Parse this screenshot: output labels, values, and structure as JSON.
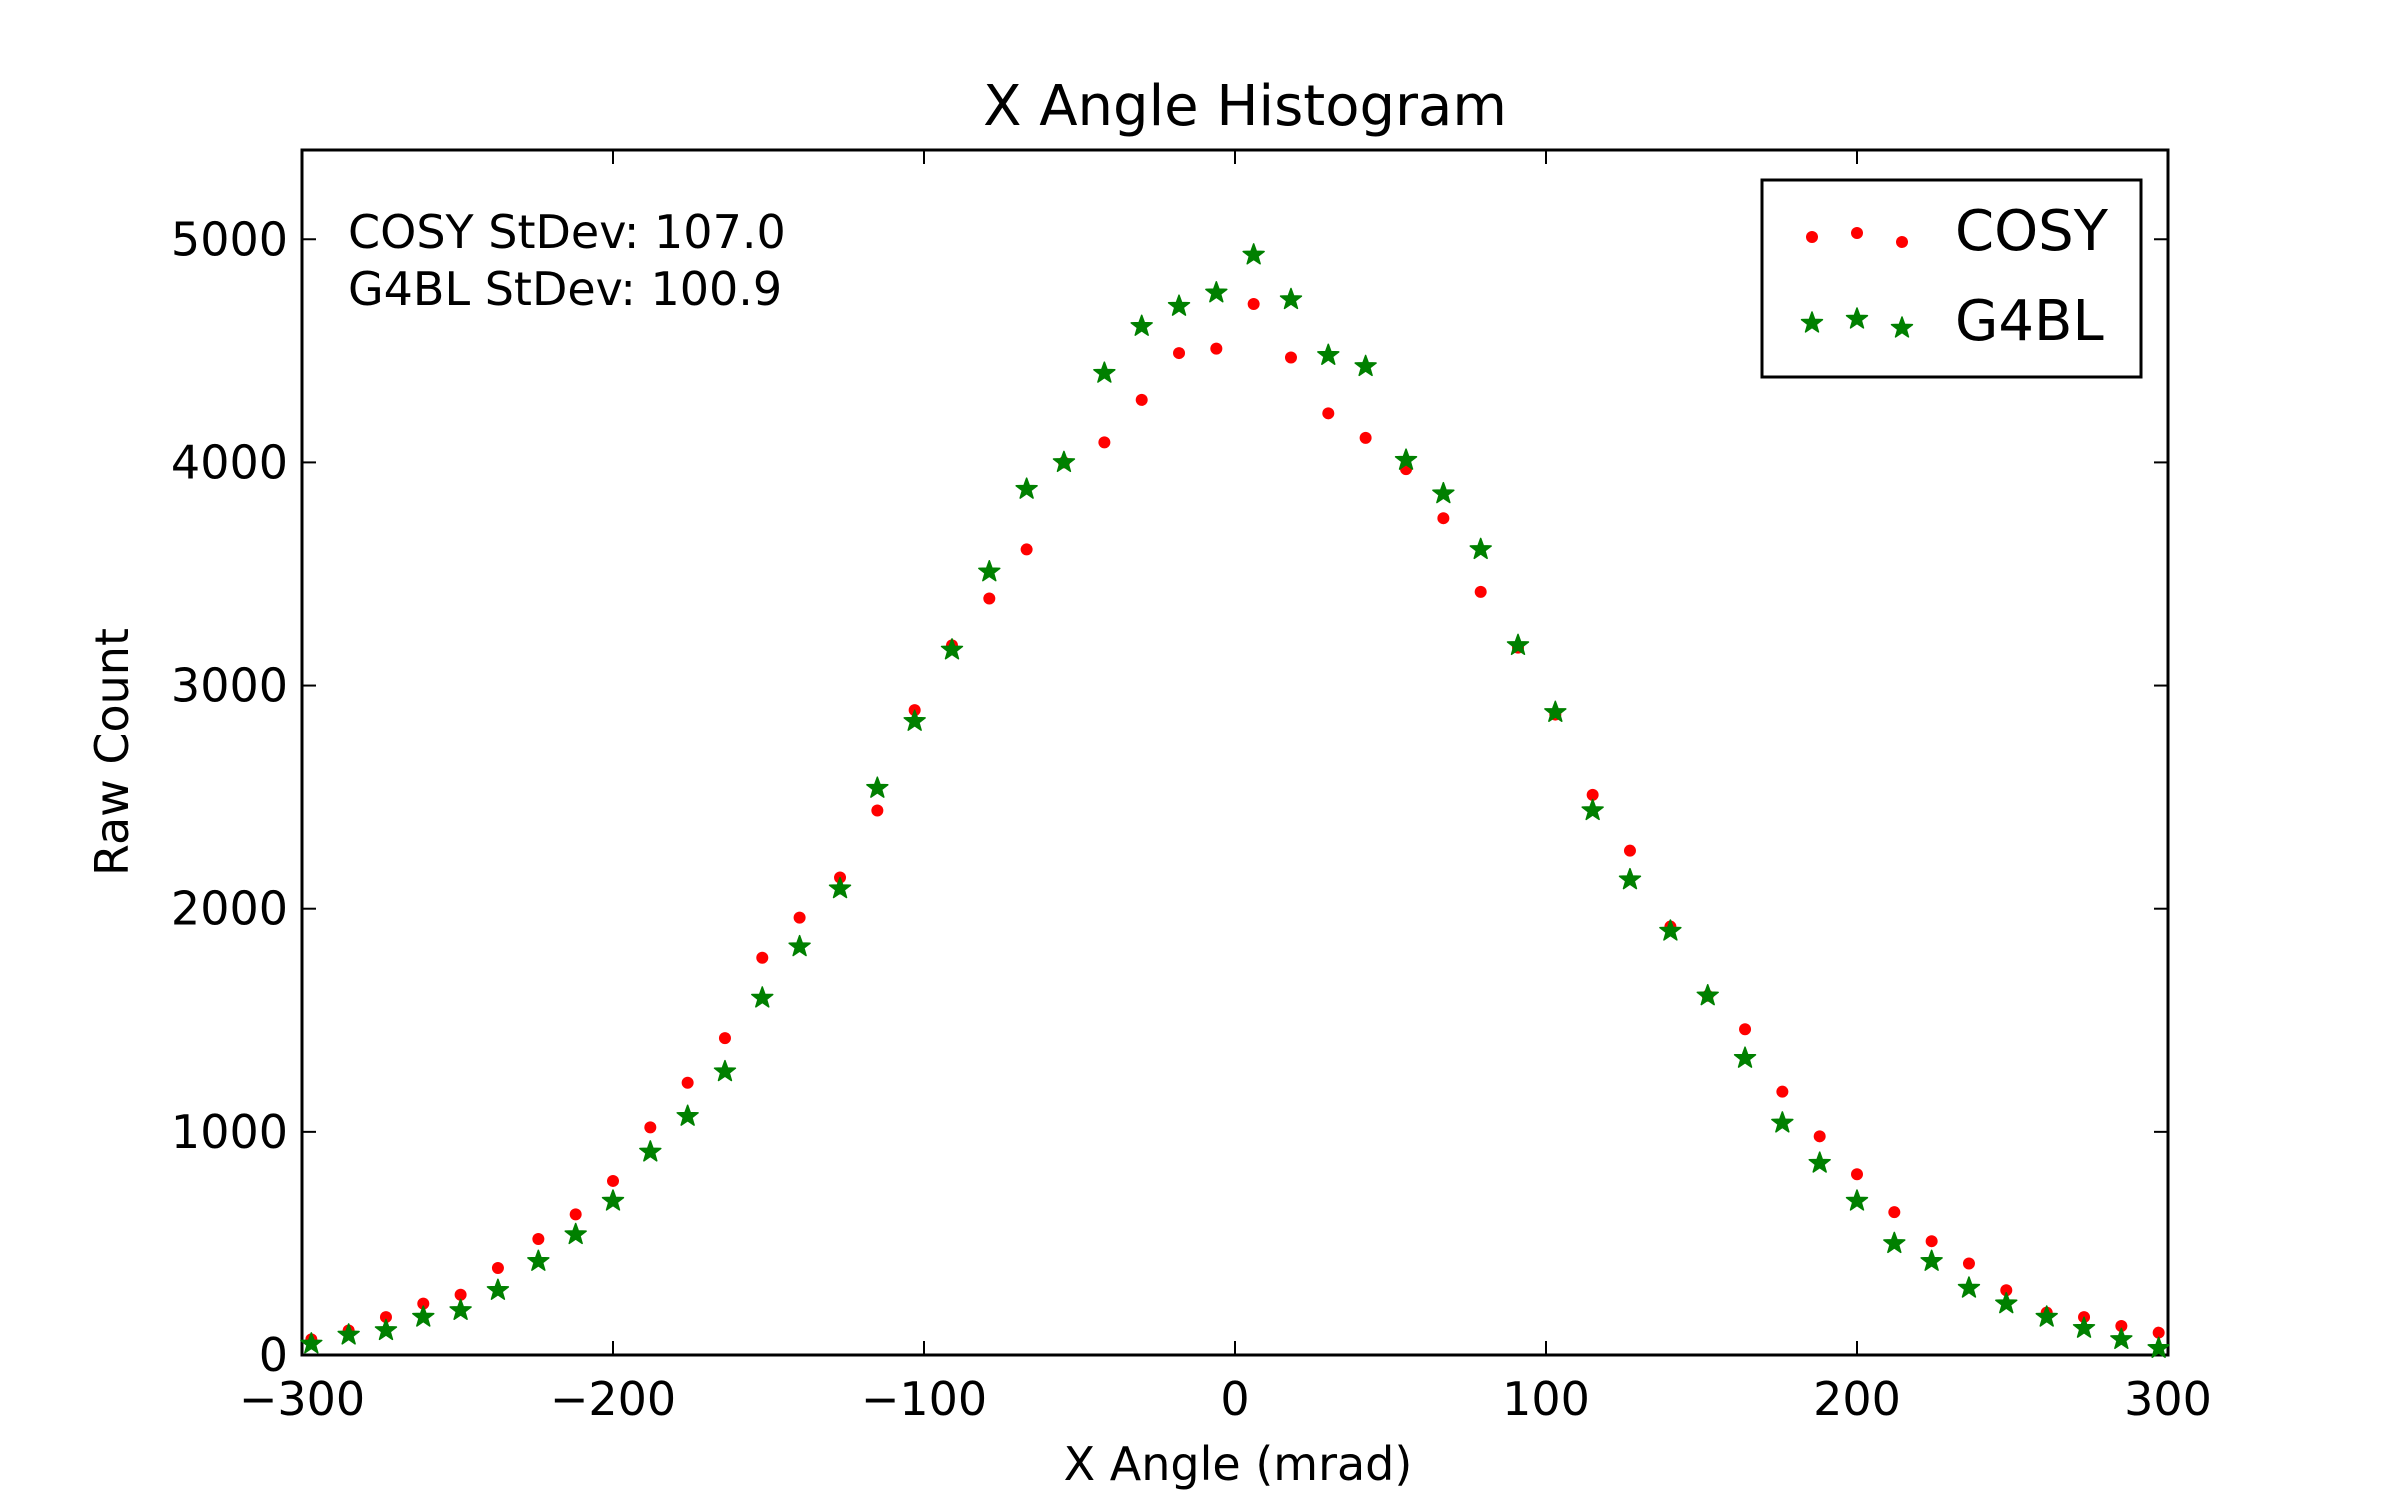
{
  "chart_data": {
    "type": "scatter",
    "title": "X Angle Histogram",
    "xlabel": "X Angle (mrad)",
    "ylabel": "Raw Count",
    "xlim": [
      -300,
      300
    ],
    "ylim": [
      0,
      5400
    ],
    "xticks": [
      -300,
      -200,
      -100,
      0,
      100,
      200,
      300
    ],
    "xtick_labels": [
      "−300",
      "−200",
      "−100",
      "0",
      "100",
      "200",
      "300"
    ],
    "yticks": [
      0,
      1000,
      2000,
      3000,
      4000,
      5000
    ],
    "ytick_labels": [
      "0",
      "1000",
      "2000",
      "3000",
      "4000",
      "5000"
    ],
    "grid": false,
    "legend_position": "top-right",
    "annotations": [
      "COSY StDev: 107.0",
      "G4BL StDev: 100.9"
    ],
    "x": [
      -297,
      -285,
      -273,
      -261,
      -249,
      -237,
      -224,
      -212,
      -200,
      -188,
      -176,
      -164,
      -152,
      -140,
      -127,
      -115,
      -103,
      -91,
      -79,
      -67,
      -55,
      -42,
      -30,
      -18,
      -6,
      6,
      18,
      30,
      42,
      55,
      67,
      79,
      91,
      103,
      115,
      127,
      140,
      152,
      164,
      176,
      188,
      200,
      212,
      224,
      236,
      248,
      261,
      273,
      285,
      297
    ],
    "series": [
      {
        "name": "COSY",
        "color": "#ff0000",
        "marker": "dot",
        "values": [
          70,
          110,
          170,
          230,
          270,
          390,
          520,
          630,
          780,
          1020,
          1220,
          1420,
          1780,
          1960,
          2140,
          2440,
          2890,
          3180,
          3390,
          3610,
          4000,
          4090,
          4280,
          4490,
          4510,
          4710,
          4470,
          4220,
          4110,
          3970,
          3750,
          3420,
          3170,
          2870,
          2510,
          2260,
          1920,
          1610,
          1460,
          1180,
          980,
          810,
          640,
          510,
          410,
          290,
          190,
          170,
          130,
          100
        ]
      },
      {
        "name": "G4BL",
        "color": "#008000",
        "marker": "star",
        "values": [
          50,
          90,
          110,
          170,
          200,
          290,
          420,
          540,
          690,
          910,
          1070,
          1270,
          1600,
          1830,
          2090,
          2540,
          2840,
          3160,
          3510,
          3880,
          4000,
          4400,
          4610,
          4700,
          4760,
          4930,
          4730,
          4480,
          4430,
          4010,
          3860,
          3610,
          3180,
          2880,
          2440,
          2130,
          1900,
          1610,
          1330,
          1040,
          860,
          690,
          500,
          420,
          300,
          230,
          170,
          120,
          70,
          30
        ]
      }
    ]
  }
}
